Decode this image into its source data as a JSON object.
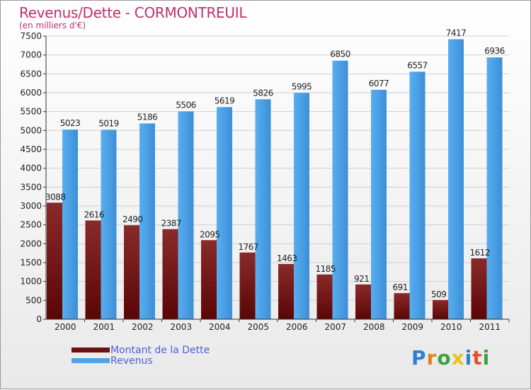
{
  "title": "Revenus/Dette - CORMONTREUIL",
  "subtitle": "(en milliers d'€)",
  "colors": {
    "dette": "#6b1010",
    "revenus": "#4ea3e8",
    "title": "#c0306a",
    "legend_text": "#5060d8"
  },
  "logo": {
    "text": "Proxiti"
  },
  "chart_data": {
    "type": "bar",
    "title": "Revenus/Dette - CORMONTREUIL",
    "ylabel": "(en milliers d'€)",
    "xlabel": "",
    "ylim": [
      0,
      7500
    ],
    "ytick_step": 500,
    "grid": true,
    "legend_position": "bottom-left",
    "categories": [
      "2000",
      "2001",
      "2002",
      "2003",
      "2004",
      "2005",
      "2006",
      "2007",
      "2008",
      "2009",
      "2010",
      "2011"
    ],
    "series": [
      {
        "name": "Montant de la Dette",
        "values": [
          3088,
          2616,
          2490,
          2387,
          2095,
          1767,
          1463,
          1185,
          921,
          691,
          509,
          1612
        ]
      },
      {
        "name": "Revenus",
        "values": [
          5023,
          5019,
          5186,
          5506,
          5619,
          5826,
          5995,
          6850,
          6077,
          6557,
          7417,
          6936
        ]
      }
    ]
  }
}
